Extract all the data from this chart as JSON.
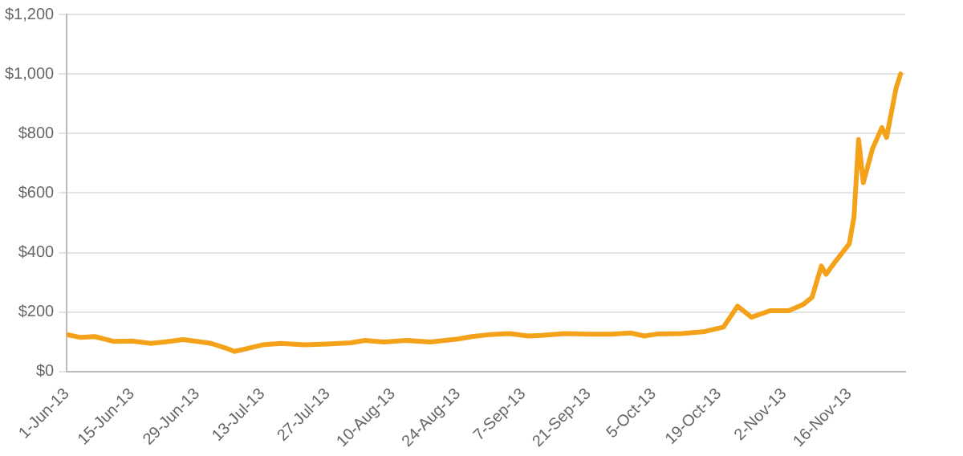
{
  "chart_data": {
    "type": "line",
    "grid": "y",
    "legend": false,
    "marker": "none",
    "line_style": "solid",
    "x": [
      "--06-01",
      "--06-04",
      "--06-07",
      "--06-11",
      "--06-15",
      "--06-19",
      "--06-22",
      "--06-26",
      "--06-29",
      "--07-02",
      "--07-05",
      "--07-07",
      "--07-09",
      "--07-13",
      "--07-17",
      "--07-22",
      "--07-27",
      "--08-01",
      "--08-04",
      "--08-08",
      "--08-13",
      "--08-18",
      "--08-24",
      "--08-27",
      "--08-31",
      "--09-04",
      "--09-08",
      "--09-11",
      "--09-16",
      "--09-21",
      "--09-26",
      "--09-30",
      "--10-03",
      "--10-06",
      "--10-11",
      "--10-16",
      "--10-20",
      "--10-23",
      "--10-26",
      "--10-30",
      "--11-03",
      "--11-06",
      "--11-08",
      "--11-10",
      "--11-11",
      "--11-13",
      "--11-16",
      "--11-17",
      "--11-18",
      "--11-19",
      "--11-21",
      "--11-23",
      "--11-24",
      "--11-26",
      "--11-27"
    ],
    "series": [
      {
        "color": "#f5a21b",
        "values": [
          125,
          115,
          118,
          102,
          103,
          95,
          100,
          108,
          102,
          95,
          80,
          68,
          75,
          90,
          95,
          90,
          93,
          97,
          105,
          100,
          105,
          100,
          110,
          118,
          125,
          128,
          120,
          122,
          128,
          126,
          126,
          130,
          120,
          127,
          128,
          135,
          150,
          220,
          183,
          205,
          205,
          225,
          250,
          355,
          327,
          370,
          430,
          520,
          780,
          635,
          750,
          820,
          787,
          950,
          1000
        ]
      }
    ],
    "xlim": [
      "--06-01",
      "--11-28"
    ],
    "xticks": [
      {
        "value": "--06-01",
        "label": "1-Jun-13"
      },
      {
        "value": "--06-15",
        "label": "15-Jun-13"
      },
      {
        "value": "--06-29",
        "label": "29-Jun-13"
      },
      {
        "value": "--07-13",
        "label": "13-Jul-13"
      },
      {
        "value": "--07-27",
        "label": "27-Jul-13"
      },
      {
        "value": "--08-10",
        "label": "10-Aug-13"
      },
      {
        "value": "--08-24",
        "label": "24-Aug-13"
      },
      {
        "value": "--09-07",
        "label": "7-Sep-13"
      },
      {
        "value": "--09-21",
        "label": "21-Sep-13"
      },
      {
        "value": "--10-05",
        "label": "5-Oct-13"
      },
      {
        "value": "--10-19",
        "label": "19-Oct-13"
      },
      {
        "value": "--11-02",
        "label": "2-Nov-13"
      },
      {
        "value": "--11-16",
        "label": "16-Nov-13"
      }
    ],
    "ylim": [
      0,
      1200
    ],
    "yticks": [
      {
        "value": 0,
        "label": "$0"
      },
      {
        "value": 200,
        "label": "$200"
      },
      {
        "value": 400,
        "label": "$400"
      },
      {
        "value": 600,
        "label": "$600"
      },
      {
        "value": 800,
        "label": "$800"
      },
      {
        "value": 1000,
        "label": "$1,000"
      },
      {
        "value": 1200,
        "label": "$1,200"
      }
    ]
  }
}
